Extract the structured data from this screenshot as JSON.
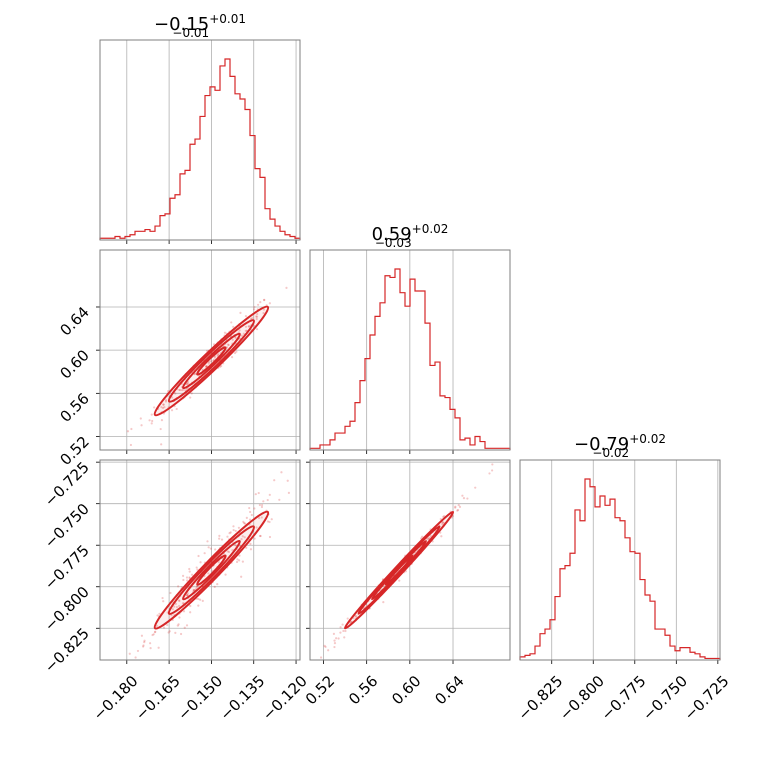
{
  "chart_data": {
    "type": "corner",
    "color": "#d62728",
    "parameters": [
      {
        "title": "−0.15",
        "upper_err": "+0.01",
        "lower_err": "−0.01",
        "range": [
          -0.1895,
          -0.1186
        ],
        "ticks": [
          -0.18,
          -0.165,
          -0.15,
          -0.135,
          -0.12
        ],
        "tick_labels": [
          "−0.180",
          "−0.165",
          "−0.150",
          "−0.135",
          "−0.120"
        ],
        "histogram": [
          1,
          1,
          1,
          2,
          1,
          2,
          3,
          5,
          5,
          6,
          5,
          8,
          14,
          15,
          24,
          26,
          38,
          40,
          55,
          58,
          71,
          83,
          88,
          86,
          100,
          104,
          94,
          84,
          81,
          75,
          60,
          41,
          36,
          18,
          12,
          8,
          5,
          3,
          2,
          1
        ]
      },
      {
        "title": "0.59",
        "upper_err": "+0.02",
        "lower_err": "−0.03",
        "range": [
          0.5075,
          0.6928
        ],
        "ticks": [
          0.52,
          0.56,
          0.6,
          0.64
        ],
        "tick_labels": [
          "0.52",
          "0.56",
          "0.60",
          "0.64"
        ],
        "histogram": [
          1,
          1,
          3,
          3,
          6,
          10,
          10,
          14,
          17,
          28,
          41,
          54,
          68,
          79,
          87,
          103,
          102,
          107,
          93,
          85,
          101,
          94,
          94,
          75,
          50,
          52,
          32,
          31,
          24,
          19,
          6,
          7,
          3,
          8,
          5,
          1,
          1,
          1,
          1,
          1
        ]
      },
      {
        "title": "−0.79",
        "upper_err": "+0.02",
        "lower_err": "−0.02",
        "range": [
          -0.8441,
          -0.7237
        ],
        "ticks": [
          -0.825,
          -0.8,
          -0.775,
          -0.75,
          -0.725
        ],
        "tick_labels": [
          "−0.825",
          "−0.800",
          "−0.775",
          "−0.750",
          "−0.725"
        ],
        "histogram": [
          2,
          3,
          4,
          9,
          17,
          20,
          26,
          41,
          59,
          61,
          69,
          97,
          90,
          117,
          112,
          99,
          106,
          100,
          104,
          92,
          90,
          79,
          70,
          69,
          52,
          42,
          38,
          20,
          20,
          16,
          9,
          6,
          8,
          8,
          5,
          4,
          2,
          1,
          1,
          1
        ]
      }
    ],
    "pairs": [
      {
        "x_param": 0,
        "y_param": 1,
        "relation": "y = 0.59 + 2.5*(x + 0.15)",
        "scatter_points": 250
      },
      {
        "x_param": 0,
        "y_param": 2,
        "relation": "y = -0.79 + 1.75*(x + 0.15)",
        "scatter_points": 250
      },
      {
        "x_param": 1,
        "y_param": 2,
        "relation": "y = -0.79 + 0.7*(x - 0.59)",
        "scatter_points": 250
      }
    ]
  }
}
